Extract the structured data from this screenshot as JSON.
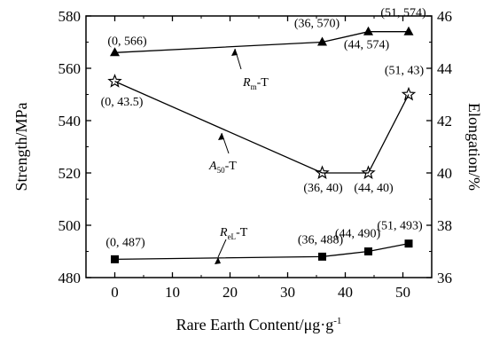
{
  "chart_data": {
    "type": "line",
    "x": {
      "label": "Rare Earth Content/μg·g⁻¹",
      "label_main": "Rare Earth Content/μg·g",
      "label_sup": "-1",
      "lim": [
        -5,
        55
      ],
      "ticks": [
        0,
        10,
        20,
        30,
        40,
        50
      ]
    },
    "y_left": {
      "label": "Strength/MPa",
      "lim": [
        480,
        580
      ],
      "ticks": [
        480,
        500,
        520,
        540,
        560,
        580
      ]
    },
    "y_right": {
      "label": "Elongation/%",
      "lim": [
        36,
        46
      ],
      "ticks": [
        36,
        38,
        40,
        42,
        44,
        46
      ]
    },
    "series": [
      {
        "name": "Rm-T",
        "label_main": "R",
        "label_sub": "m",
        "label_suffix": "-T",
        "axis": "left",
        "marker": "triangle",
        "x": [
          0,
          36,
          44,
          51
        ],
        "y": [
          566,
          570,
          574,
          574
        ],
        "point_labels": [
          "(0, 566)",
          "(36, 570)",
          "(44, 574)",
          "(51, 574)"
        ]
      },
      {
        "name": "A50-T",
        "label_main": "A",
        "label_sub": "50",
        "label_suffix": "-T",
        "axis": "right",
        "marker": "star",
        "x": [
          0,
          36,
          44,
          51
        ],
        "y": [
          43.5,
          40,
          40,
          43
        ],
        "point_labels": [
          "(0, 43.5)",
          "(36, 40)",
          "(44, 40)",
          "(51, 43)"
        ]
      },
      {
        "name": "ReL-T",
        "label_main": "R",
        "label_sub": "eL",
        "label_suffix": "-T",
        "axis": "left",
        "marker": "square",
        "x": [
          0,
          36,
          44,
          51
        ],
        "y": [
          487,
          488,
          490,
          493
        ],
        "point_labels": [
          "(0, 487)",
          "(36, 488)",
          "(44, 490)",
          "(51, 493)"
        ]
      }
    ]
  }
}
